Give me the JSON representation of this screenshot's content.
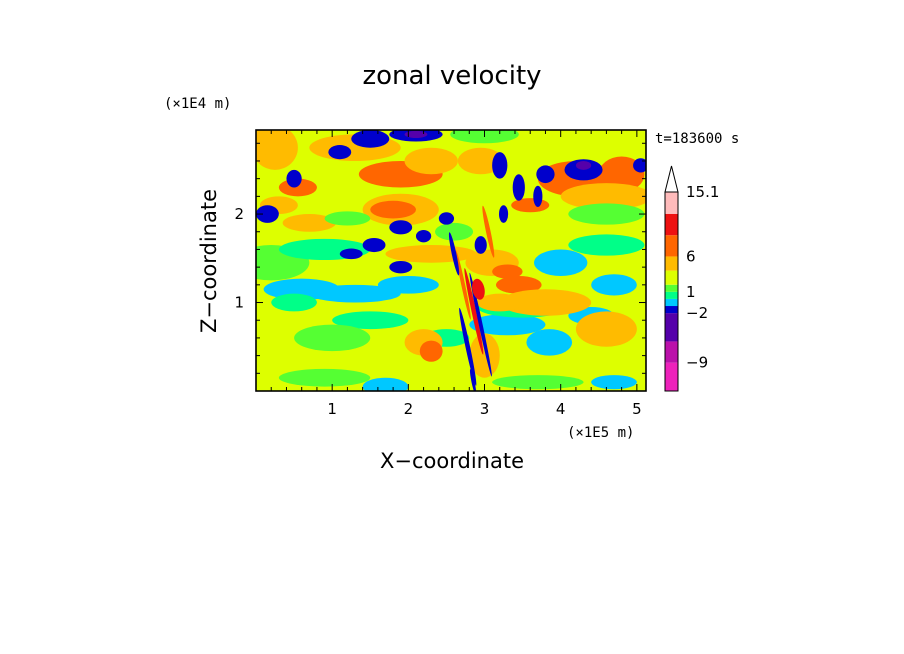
{
  "chart_data": {
    "type": "heatmap",
    "title": "zonal velocity",
    "xlabel": "X−coordinate",
    "ylabel": "Z−coordinate",
    "x_unit": "(×1E5 m)",
    "y_unit": "(×1E4 m)",
    "time_label": "t=183600 s",
    "xlim": [
      0,
      5.12
    ],
    "ylim": [
      0,
      2.95
    ],
    "x_ticks": [
      "1",
      "2",
      "3",
      "4",
      "5"
    ],
    "y_ticks": [
      "1",
      "2"
    ],
    "colorbar": {
      "levels": [
        -13,
        -9,
        -6,
        -2,
        -1,
        0,
        1,
        2,
        4,
        6,
        9,
        12,
        15.1
      ],
      "colors": [
        "#ee22bb",
        "#bb11aa",
        "#5500aa",
        "#0000cc",
        "#00c8ff",
        "#00ff88",
        "#55ff33",
        "#ddff00",
        "#ffbb00",
        "#ff6600",
        "#ee1111",
        "#ff8888",
        "#ffbbbb"
      ],
      "over_color": "#ffffff",
      "labels": [
        {
          "value": 15.1,
          "text": "15.1"
        },
        {
          "value": 6,
          "text": "6"
        },
        {
          "value": 1,
          "text": "1"
        },
        {
          "value": -2,
          "text": "−2"
        },
        {
          "value": -9,
          "text": "−9"
        }
      ]
    }
  }
}
